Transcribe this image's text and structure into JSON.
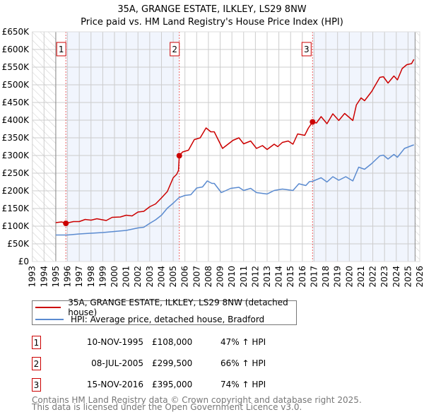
{
  "chart_data": {
    "type": "line",
    "title": "35A, GRANGE ESTATE, ILKLEY, LS29 8NW",
    "subtitle": "Price paid vs. HM Land Registry's House Price Index (HPI)",
    "xlim": [
      1993,
      2026
    ],
    "ylim": [
      0,
      650000
    ],
    "x_ticks": [
      "1993",
      "1994",
      "1995",
      "1996",
      "1997",
      "1998",
      "1999",
      "2000",
      "2001",
      "2002",
      "2003",
      "2004",
      "2005",
      "2006",
      "2007",
      "2008",
      "2009",
      "2010",
      "2011",
      "2012",
      "2013",
      "2014",
      "2015",
      "2016",
      "2017",
      "2018",
      "2019",
      "2020",
      "2021",
      "2022",
      "2023",
      "2024",
      "2025",
      "2026"
    ],
    "y_ticks": [
      "£0",
      "£50K",
      "£100K",
      "£150K",
      "£200K",
      "£250K",
      "£300K",
      "£350K",
      "£400K",
      "£450K",
      "£500K",
      "£550K",
      "£600K",
      "£650K"
    ],
    "grid": true,
    "series": [
      {
        "name": "35A, GRANGE ESTATE, ILKLEY, LS29 8NW (detached house)",
        "color": "#cc0000",
        "x": [
          1995.0,
          1995.5,
          1995.86,
          1996.5,
          1997.0,
          1997.5,
          1998.0,
          1998.5,
          1999.3,
          1999.8,
          2000.5,
          2001.0,
          2001.5,
          2002.0,
          2002.5,
          2003.0,
          2003.5,
          2004.0,
          2004.5,
          2005.0,
          2005.3,
          2005.45,
          2005.52,
          2005.8,
          2006.3,
          2006.8,
          2007.3,
          2007.8,
          2008.2,
          2008.5,
          2009.2,
          2010.1,
          2010.6,
          2011.0,
          2011.6,
          2012.1,
          2012.6,
          2013.0,
          2013.6,
          2013.9,
          2014.3,
          2014.8,
          2015.2,
          2015.6,
          2016.2,
          2016.5,
          2016.87,
          2017.2,
          2017.6,
          2018.1,
          2018.6,
          2019.1,
          2019.6,
          2020.3,
          2020.6,
          2021.0,
          2021.3,
          2021.9,
          2022.6,
          2022.9,
          2023.3,
          2023.8,
          2024.1,
          2024.5,
          2024.9,
          2025.3,
          2025.5
        ],
        "y": [
          110000,
          112000,
          108000,
          113000,
          113000,
          119000,
          117000,
          121000,
          116000,
          125000,
          126000,
          131000,
          129000,
          140000,
          142000,
          155000,
          163000,
          180000,
          198000,
          237000,
          247000,
          258000,
          299500,
          310000,
          315000,
          345000,
          350000,
          378000,
          367000,
          367000,
          320000,
          343000,
          350000,
          333000,
          341000,
          320000,
          328000,
          317000,
          332000,
          325000,
          337000,
          341000,
          332000,
          361000,
          357000,
          377000,
          395000,
          392000,
          410000,
          390000,
          418000,
          399000,
          419000,
          399000,
          443000,
          463000,
          455000,
          481000,
          521000,
          523000,
          505000,
          525000,
          514000,
          546000,
          557000,
          560000,
          572000
        ]
      },
      {
        "name": "HPI: Average price, detached house, Bradford",
        "color": "#5b8bd0",
        "x": [
          1995.0,
          1996.0,
          1997.0,
          1998.0,
          1999.0,
          2000.0,
          2001.0,
          2002.0,
          2002.5,
          2003.0,
          2003.5,
          2004.0,
          2004.5,
          2005.0,
          2005.5,
          2006.0,
          2006.5,
          2007.0,
          2007.5,
          2007.9,
          2008.3,
          2008.5,
          2009.1,
          2009.9,
          2010.6,
          2011.0,
          2011.6,
          2012.1,
          2013.0,
          2013.6,
          2014.3,
          2015.2,
          2015.7,
          2016.3,
          2016.6,
          2016.87,
          2017.6,
          2018.1,
          2018.6,
          2019.1,
          2019.7,
          2020.3,
          2020.8,
          2021.3,
          2021.9,
          2022.6,
          2022.9,
          2023.3,
          2023.8,
          2024.1,
          2024.7,
          2025.4,
          2025.5
        ],
        "y": [
          75000,
          75000,
          78000,
          80000,
          82000,
          85000,
          88000,
          95000,
          97000,
          108000,
          118000,
          131000,
          151000,
          165000,
          181000,
          187000,
          189000,
          208000,
          211000,
          228000,
          221000,
          221000,
          195000,
          207000,
          210000,
          201000,
          207000,
          195000,
          191000,
          201000,
          205000,
          201000,
          220000,
          215000,
          226000,
          227000,
          237000,
          225000,
          240000,
          230000,
          240000,
          228000,
          267000,
          261000,
          277000,
          299000,
          301000,
          290000,
          303000,
          295000,
          320000,
          329000,
          330000
        ]
      }
    ],
    "sales": [
      {
        "label": "1",
        "x": 1995.86,
        "y": 108000,
        "date": "10-NOV-1995",
        "price": "£108,000",
        "hpi": "47% ↑ HPI"
      },
      {
        "label": "2",
        "x": 2005.52,
        "y": 299500,
        "date": "08-JUL-2005",
        "price": "£299,500",
        "hpi": "66% ↑ HPI"
      },
      {
        "label": "3",
        "x": 2016.87,
        "y": 395000,
        "date": "15-NOV-2016",
        "price": "£395,000",
        "hpi": "74% ↑ HPI"
      }
    ],
    "data_start": 1995,
    "data_end": 2025.6,
    "legend_placement": "below"
  },
  "footer": {
    "line1": "Contains HM Land Registry data © Crown copyright and database right 2025.",
    "line2": "This data is licensed under the Open Government Licence v3.0."
  }
}
